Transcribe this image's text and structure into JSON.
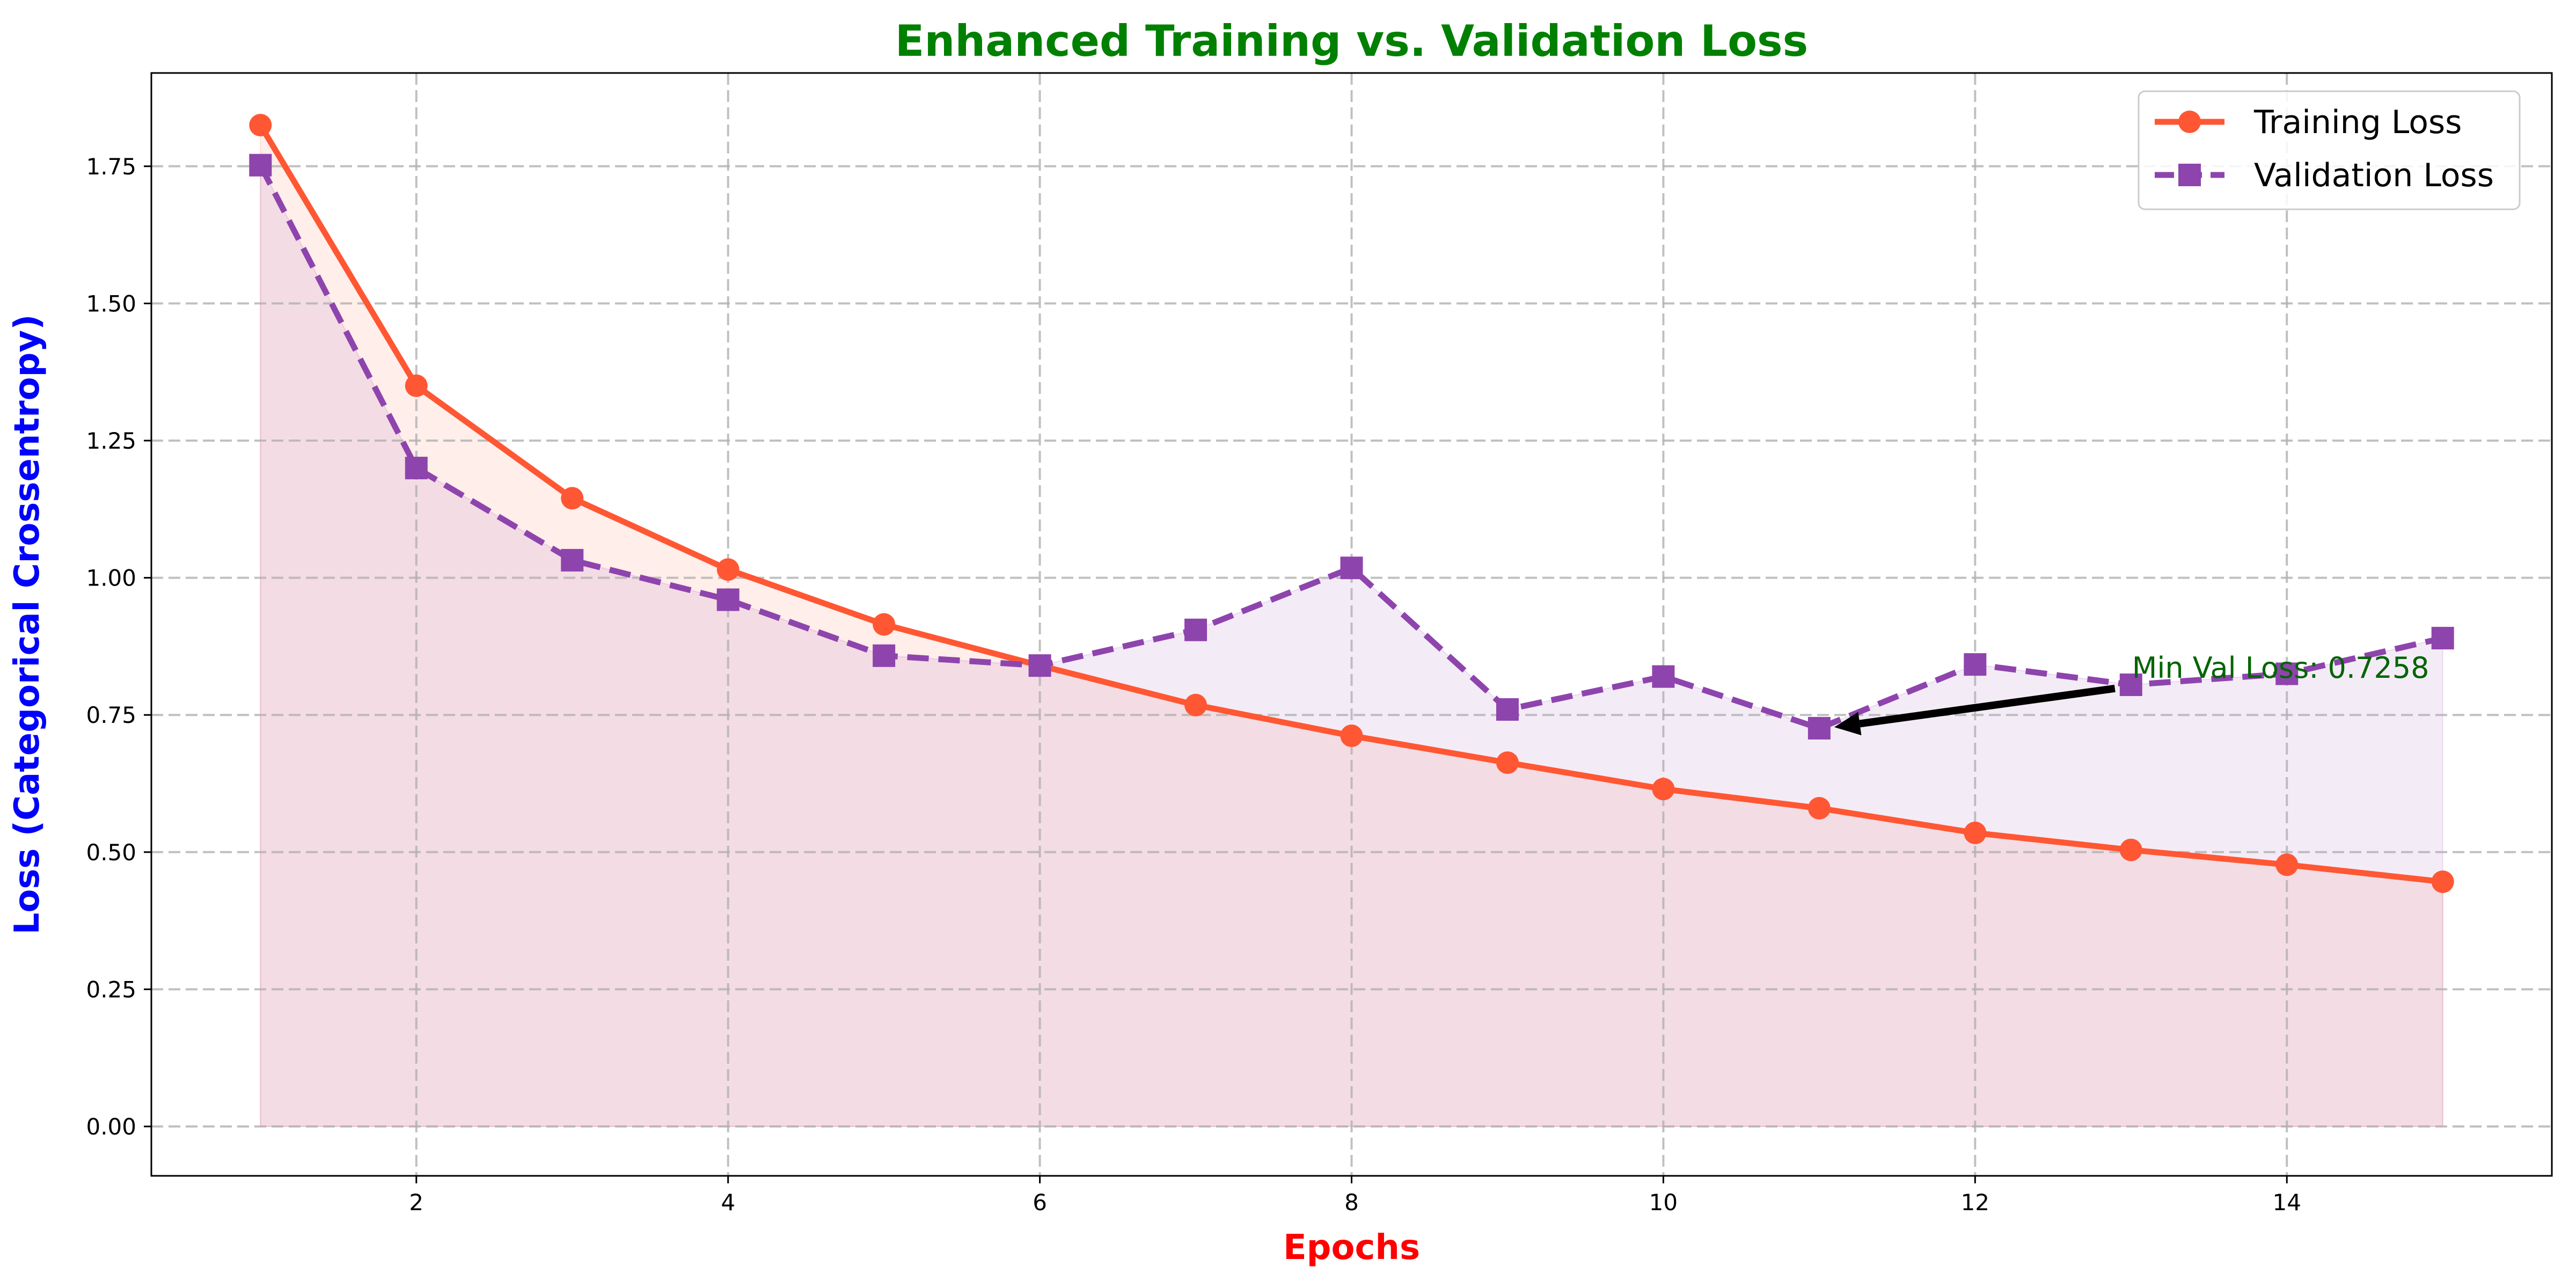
{
  "chart_data": {
    "type": "line",
    "title": "Enhanced Training vs. Validation Loss",
    "xlabel": "Epochs",
    "ylabel": "Loss (Categorical Crossentropy)",
    "xlim": [
      0.3,
      15.7
    ],
    "ylim": [
      -0.09,
      1.92
    ],
    "xticks": [
      2,
      4,
      6,
      8,
      10,
      12,
      14
    ],
    "yticks": [
      0.0,
      0.25,
      0.5,
      0.75,
      1.0,
      1.25,
      1.5,
      1.75
    ],
    "grid": true,
    "legend_position": "top-right",
    "x": [
      1,
      2,
      3,
      4,
      5,
      6,
      7,
      8,
      9,
      10,
      11,
      12,
      13,
      14,
      15
    ],
    "series": [
      {
        "name": "Training Loss",
        "values": [
          1.825,
          1.35,
          1.145,
          1.015,
          0.915,
          0.84,
          0.768,
          0.712,
          0.663,
          0.615,
          0.58,
          0.535,
          0.504,
          0.477,
          0.446
        ],
        "color": "#ff5733",
        "marker": "circle",
        "linestyle": "solid"
      },
      {
        "name": "Validation Loss",
        "values": [
          1.752,
          1.2,
          1.032,
          0.96,
          0.858,
          0.84,
          0.905,
          1.018,
          0.76,
          0.82,
          0.7258,
          0.842,
          0.805,
          0.825,
          0.89
        ],
        "color": "#8e44ad",
        "marker": "square",
        "linestyle": "dashed"
      }
    ],
    "annotation": {
      "text": "Min Val Loss: 0.7258",
      "point_x": 11,
      "point_y": 0.7258,
      "text_x": 13,
      "text_y": 0.81,
      "color": "#006400"
    },
    "colors": {
      "title": "#008000",
      "xlabel": "#ff0000",
      "ylabel": "#0000ff"
    }
  }
}
